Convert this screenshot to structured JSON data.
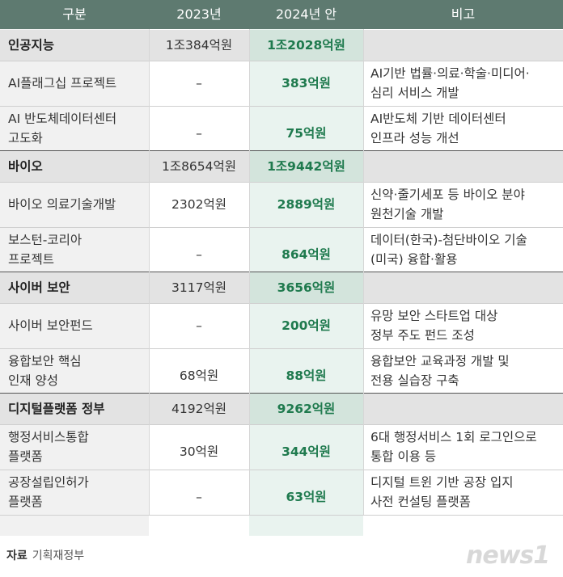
{
  "header": {
    "col1": "구분",
    "col2": "2023년",
    "col3": "2024년 안",
    "col4": "비고"
  },
  "sections": [
    {
      "name": "인공지능",
      "y2023": "1조384억원",
      "y2024": "1조2028억원",
      "items": [
        {
          "name": [
            "AI플래그십 프로젝트"
          ],
          "y2023": "–",
          "y2024": "383억원",
          "note": [
            "AI기반 법률·의료·학술·미디어·",
            "심리 서비스 개발"
          ]
        },
        {
          "name": [
            "AI 반도체데이터센터",
            "고도화"
          ],
          "y2023": "–",
          "y2024": "75억원",
          "note": [
            "AI반도체 기반 데이터센터",
            "인프라 성능 개선"
          ]
        }
      ]
    },
    {
      "name": "바이오",
      "y2023": "1조8654억원",
      "y2024": "1조9442억원",
      "items": [
        {
          "name": [
            "바이오 의료기술개발"
          ],
          "y2023": "2302억원",
          "y2024": "2889억원",
          "note": [
            "신약·줄기세포 등 바이오 분야",
            "원천기술 개발"
          ]
        },
        {
          "name": [
            "보스턴-코리아",
            "프로젝트"
          ],
          "y2023": "–",
          "y2024": "864억원",
          "note": [
            "데이터(한국)-첨단바이오 기술",
            "(미국) 융합·활용"
          ]
        }
      ]
    },
    {
      "name": "사이버 보안",
      "y2023": "3117억원",
      "y2024": "3656억원",
      "items": [
        {
          "name": [
            "사이버 보안펀드"
          ],
          "y2023": "–",
          "y2024": "200억원",
          "note": [
            "유망 보안 스타트업 대상",
            "정부 주도 펀드 조성"
          ]
        },
        {
          "name": [
            "융합보안 핵심",
            "인재 양성"
          ],
          "y2023": "68억원",
          "y2024": "88억원",
          "note": [
            "융합보안 교육과정 개발 및",
            "전용 실습장 구축"
          ]
        }
      ]
    },
    {
      "name": "디지털플랫폼 정부",
      "y2023": "4192억원",
      "y2024": "9262억원",
      "items": [
        {
          "name": [
            "행정서비스통합",
            "플랫폼"
          ],
          "y2023": "30억원",
          "y2024": "344억원",
          "note": [
            "6대 행정서비스 1회 로그인으로",
            "통합 이용 등"
          ]
        },
        {
          "name": [
            "공장설립인허가",
            "플랫폼"
          ],
          "y2023": "–",
          "y2024": "63억원",
          "note": [
            "디지털 트윈 기반 공장 입지",
            "사전 컨설팅 플랫폼"
          ]
        }
      ]
    }
  ],
  "footer": {
    "source_label": "자료",
    "source_text": "기획재정부",
    "logo": "news1"
  }
}
